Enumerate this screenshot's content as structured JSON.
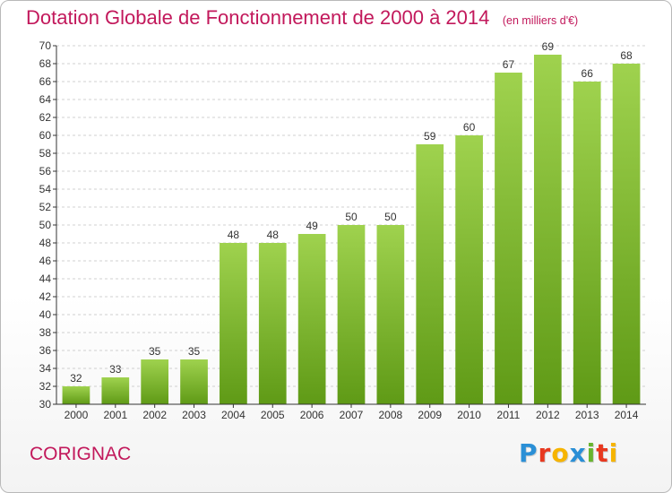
{
  "header": {
    "title": "Dotation Globale de Fonctionnement de 2000 à 2014",
    "subtitle": "(en milliers d'€)"
  },
  "commune": "CORIGNAC",
  "logo": {
    "text": "Proxiti",
    "letter_colors": [
      "#2a8fd6",
      "#e8381f",
      "#f6b400",
      "#2a8fd6",
      "#69b52f",
      "#e8381f",
      "#f6b400"
    ]
  },
  "chart_data": {
    "type": "bar",
    "categories": [
      "2000",
      "2001",
      "2002",
      "2003",
      "2004",
      "2005",
      "2006",
      "2007",
      "2008",
      "2009",
      "2010",
      "2011",
      "2012",
      "2013",
      "2014"
    ],
    "values": [
      32,
      33,
      35,
      35,
      48,
      48,
      49,
      50,
      50,
      59,
      60,
      67,
      69,
      66,
      68
    ],
    "ylim": [
      30,
      70
    ],
    "ytick_step": 2,
    "grid": true,
    "colors": {
      "bar_top": "#9fd24e",
      "bar_bottom": "#5f9a16",
      "grid": "#d0d0d0",
      "axis": "#333333",
      "label": "#333333"
    }
  }
}
